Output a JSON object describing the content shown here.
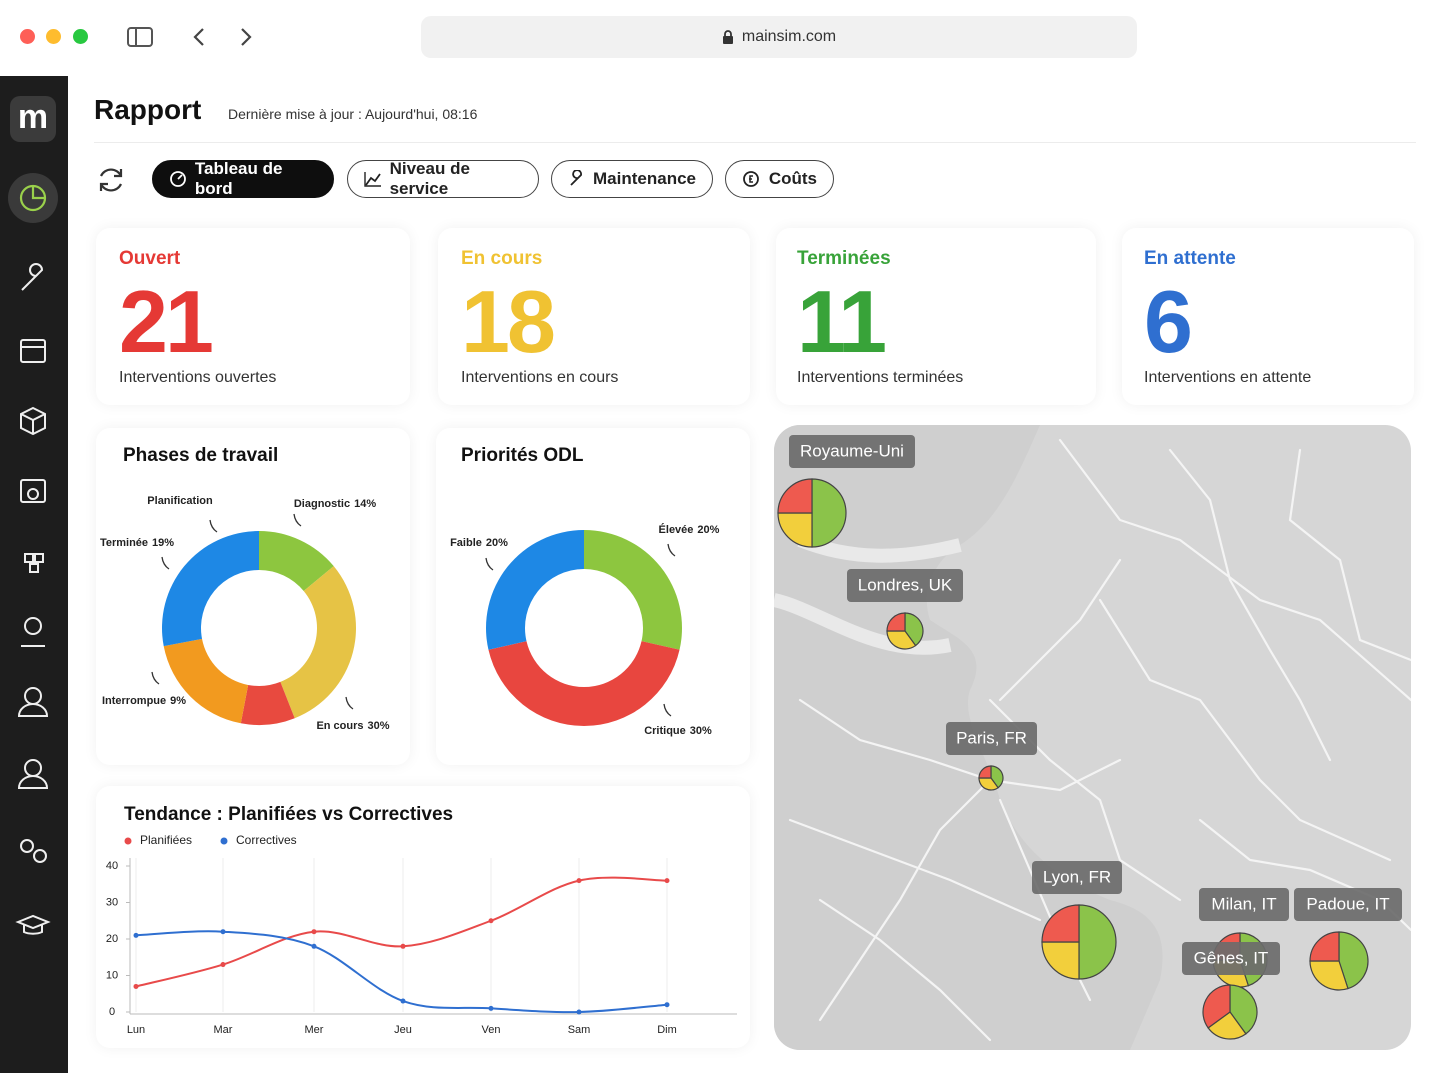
{
  "browser": {
    "url": "mainsim.com"
  },
  "sidebar": {
    "logo": "m"
  },
  "header": {
    "title": "Rapport",
    "updated": "Dernière mise à jour : Aujourd'hui, 08:16"
  },
  "tabs": [
    {
      "label": "Tableau de bord",
      "active": true
    },
    {
      "label": "Niveau de service"
    },
    {
      "label": "Maintenance"
    },
    {
      "label": "Coûts"
    }
  ],
  "kpis": [
    {
      "label": "Ouvert",
      "value": 21,
      "caption": "Interventions ouvertes",
      "color": "#e53935"
    },
    {
      "label": "En cours",
      "value": 18,
      "caption": "Interventions en cours",
      "color": "#f0c232"
    },
    {
      "label": "Terminées",
      "value": 11,
      "caption": "Interventions terminées",
      "color": "#38a339"
    },
    {
      "label": "En attente",
      "value": 6,
      "caption": "Interventions en attente",
      "color": "#2f6fd0"
    }
  ],
  "charts": [
    {
      "type": "donut",
      "title": "Phases de travail",
      "categories": [
        "Diagnostic",
        "En cours",
        "Interrompue",
        "Terminée",
        "Planification"
      ],
      "values": [
        14,
        30,
        9,
        19,
        28
      ],
      "value_labels": [
        "14%",
        "30%",
        "9%",
        "19%",
        null
      ],
      "colors": [
        "#8dc63f",
        "#e6c345",
        "#e84a3f",
        "#f29a1f",
        "#1e88e5"
      ]
    },
    {
      "type": "donut",
      "title": "Priorités ODL",
      "categories": [
        "Élevée",
        "Critique",
        "Faible"
      ],
      "values": [
        20,
        30,
        20
      ],
      "value_labels": [
        "20%",
        "30%",
        "20%"
      ],
      "colors": [
        "#8dc63f",
        "#e8463f",
        "#1e88e5"
      ]
    },
    {
      "type": "line",
      "title": "Tendance : Planifiées vs Correctives",
      "categories": [
        "Lun",
        "Mar",
        "Mer",
        "Jeu",
        "Ven",
        "Sam",
        "Dim"
      ],
      "series": [
        {
          "name": "Planifiées",
          "color": "#e84a4a",
          "values": [
            7,
            13,
            22,
            18,
            25,
            36,
            36
          ]
        },
        {
          "name": "Correctives",
          "color": "#2f6fd0",
          "values": [
            21,
            22,
            18,
            3,
            1,
            0,
            2
          ]
        }
      ],
      "ylim": [
        0,
        40
      ],
      "yticks": [
        0,
        10,
        20,
        30,
        40
      ]
    }
  ],
  "map": {
    "type": "pie-map",
    "colors": [
      "#8bc34a",
      "#f2cf3c",
      "#ee5a4f"
    ],
    "sites": [
      {
        "name": "Royaume-Uni",
        "values": [
          50,
          25,
          25
        ]
      },
      {
        "name": "Londres, UK",
        "values": [
          40,
          35,
          25
        ]
      },
      {
        "name": "Paris, FR",
        "values": [
          40,
          35,
          25
        ]
      },
      {
        "name": "Lyon, FR",
        "values": [
          50,
          25,
          25
        ]
      },
      {
        "name": "Milan, IT",
        "values": [
          45,
          30,
          25
        ]
      },
      {
        "name": "Padoue, IT",
        "values": [
          45,
          30,
          25
        ]
      },
      {
        "name": "Gênes, IT",
        "values": [
          40,
          25,
          35
        ]
      }
    ]
  }
}
